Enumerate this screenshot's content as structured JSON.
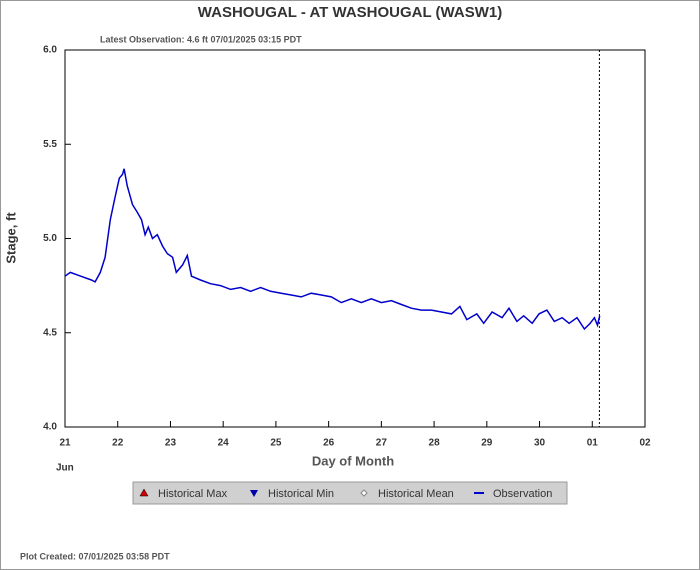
{
  "chart_data": {
    "type": "line",
    "title": "WASHOUGAL - AT WASHOUGAL  (WASW1)",
    "subtitle": "Latest Observation: 4.6 ft 07/01/2025 03:15 PDT",
    "x_label": "Day of Month",
    "y_label": "Stage, ft",
    "month_label": "Jun",
    "footer": "Plot Created: 07/01/2025 03:58 PDT",
    "xlim": [
      0,
      11
    ],
    "xticks": [
      {
        "value": 0,
        "label": "21"
      },
      {
        "value": 1,
        "label": "22"
      },
      {
        "value": 2,
        "label": "23"
      },
      {
        "value": 3,
        "label": "24"
      },
      {
        "value": 4,
        "label": "25"
      },
      {
        "value": 5,
        "label": "26"
      },
      {
        "value": 6,
        "label": "27"
      },
      {
        "value": 7,
        "label": "28"
      },
      {
        "value": 8,
        "label": "29"
      },
      {
        "value": 9,
        "label": "30"
      },
      {
        "value": 10,
        "label": "01"
      },
      {
        "value": 11,
        "label": "02"
      }
    ],
    "ylim": [
      4,
      6
    ],
    "yticks": [
      {
        "value": 4,
        "label": "4.0"
      },
      {
        "value": 4.5,
        "label": "4.5"
      },
      {
        "value": 5,
        "label": "5.0"
      },
      {
        "value": 5.5,
        "label": "5.5"
      },
      {
        "value": 6,
        "label": "6.0"
      }
    ],
    "latest_x": 10.135,
    "legend_items": [
      {
        "name": "Historical Max",
        "color": "#cc0000",
        "marker": "triangle-up"
      },
      {
        "name": "Historical Min",
        "color": "#0000aa",
        "marker": "triangle-down"
      },
      {
        "name": "Historical Mean",
        "color": "#888888",
        "marker": "diamond"
      }
    ],
    "series": [
      {
        "name": "Observation",
        "color": "#0000cc",
        "x": [
          0,
          0.1,
          0.3,
          0.5,
          0.57,
          0.67,
          0.76,
          0.86,
          0.95,
          1.03,
          1.09,
          1.12,
          1.18,
          1.28,
          1.37,
          1.45,
          1.52,
          1.58,
          1.66,
          1.75,
          1.85,
          1.94,
          2.04,
          2.11,
          2.23,
          2.32,
          2.4,
          2.57,
          2.76,
          2.95,
          3.14,
          3.33,
          3.52,
          3.71,
          3.9,
          4.1,
          4.29,
          4.48,
          4.67,
          4.86,
          5.05,
          5.24,
          5.43,
          5.62,
          5.81,
          6.0,
          6.19,
          6.38,
          6.57,
          6.76,
          6.95,
          7.14,
          7.33,
          7.49,
          7.62,
          7.81,
          7.94,
          8.1,
          8.29,
          8.42,
          8.57,
          8.7,
          8.86,
          8.99,
          9.14,
          9.28,
          9.43,
          9.56,
          9.71,
          9.85,
          9.96,
          10.04,
          10.1,
          10.14
        ],
        "values": [
          4.8,
          4.82,
          4.8,
          4.78,
          4.77,
          4.82,
          4.9,
          5.1,
          5.22,
          5.32,
          5.34,
          5.37,
          5.28,
          5.18,
          5.14,
          5.1,
          5.02,
          5.06,
          5.0,
          5.02,
          4.96,
          4.92,
          4.9,
          4.82,
          4.86,
          4.91,
          4.8,
          4.78,
          4.76,
          4.75,
          4.73,
          4.74,
          4.72,
          4.74,
          4.72,
          4.71,
          4.7,
          4.69,
          4.71,
          4.7,
          4.69,
          4.66,
          4.68,
          4.66,
          4.68,
          4.66,
          4.67,
          4.65,
          4.63,
          4.62,
          4.62,
          4.61,
          4.6,
          4.64,
          4.57,
          4.6,
          4.55,
          4.61,
          4.58,
          4.63,
          4.56,
          4.59,
          4.55,
          4.6,
          4.62,
          4.56,
          4.58,
          4.55,
          4.58,
          4.52,
          4.55,
          4.58,
          4.54,
          4.59
        ]
      }
    ]
  }
}
